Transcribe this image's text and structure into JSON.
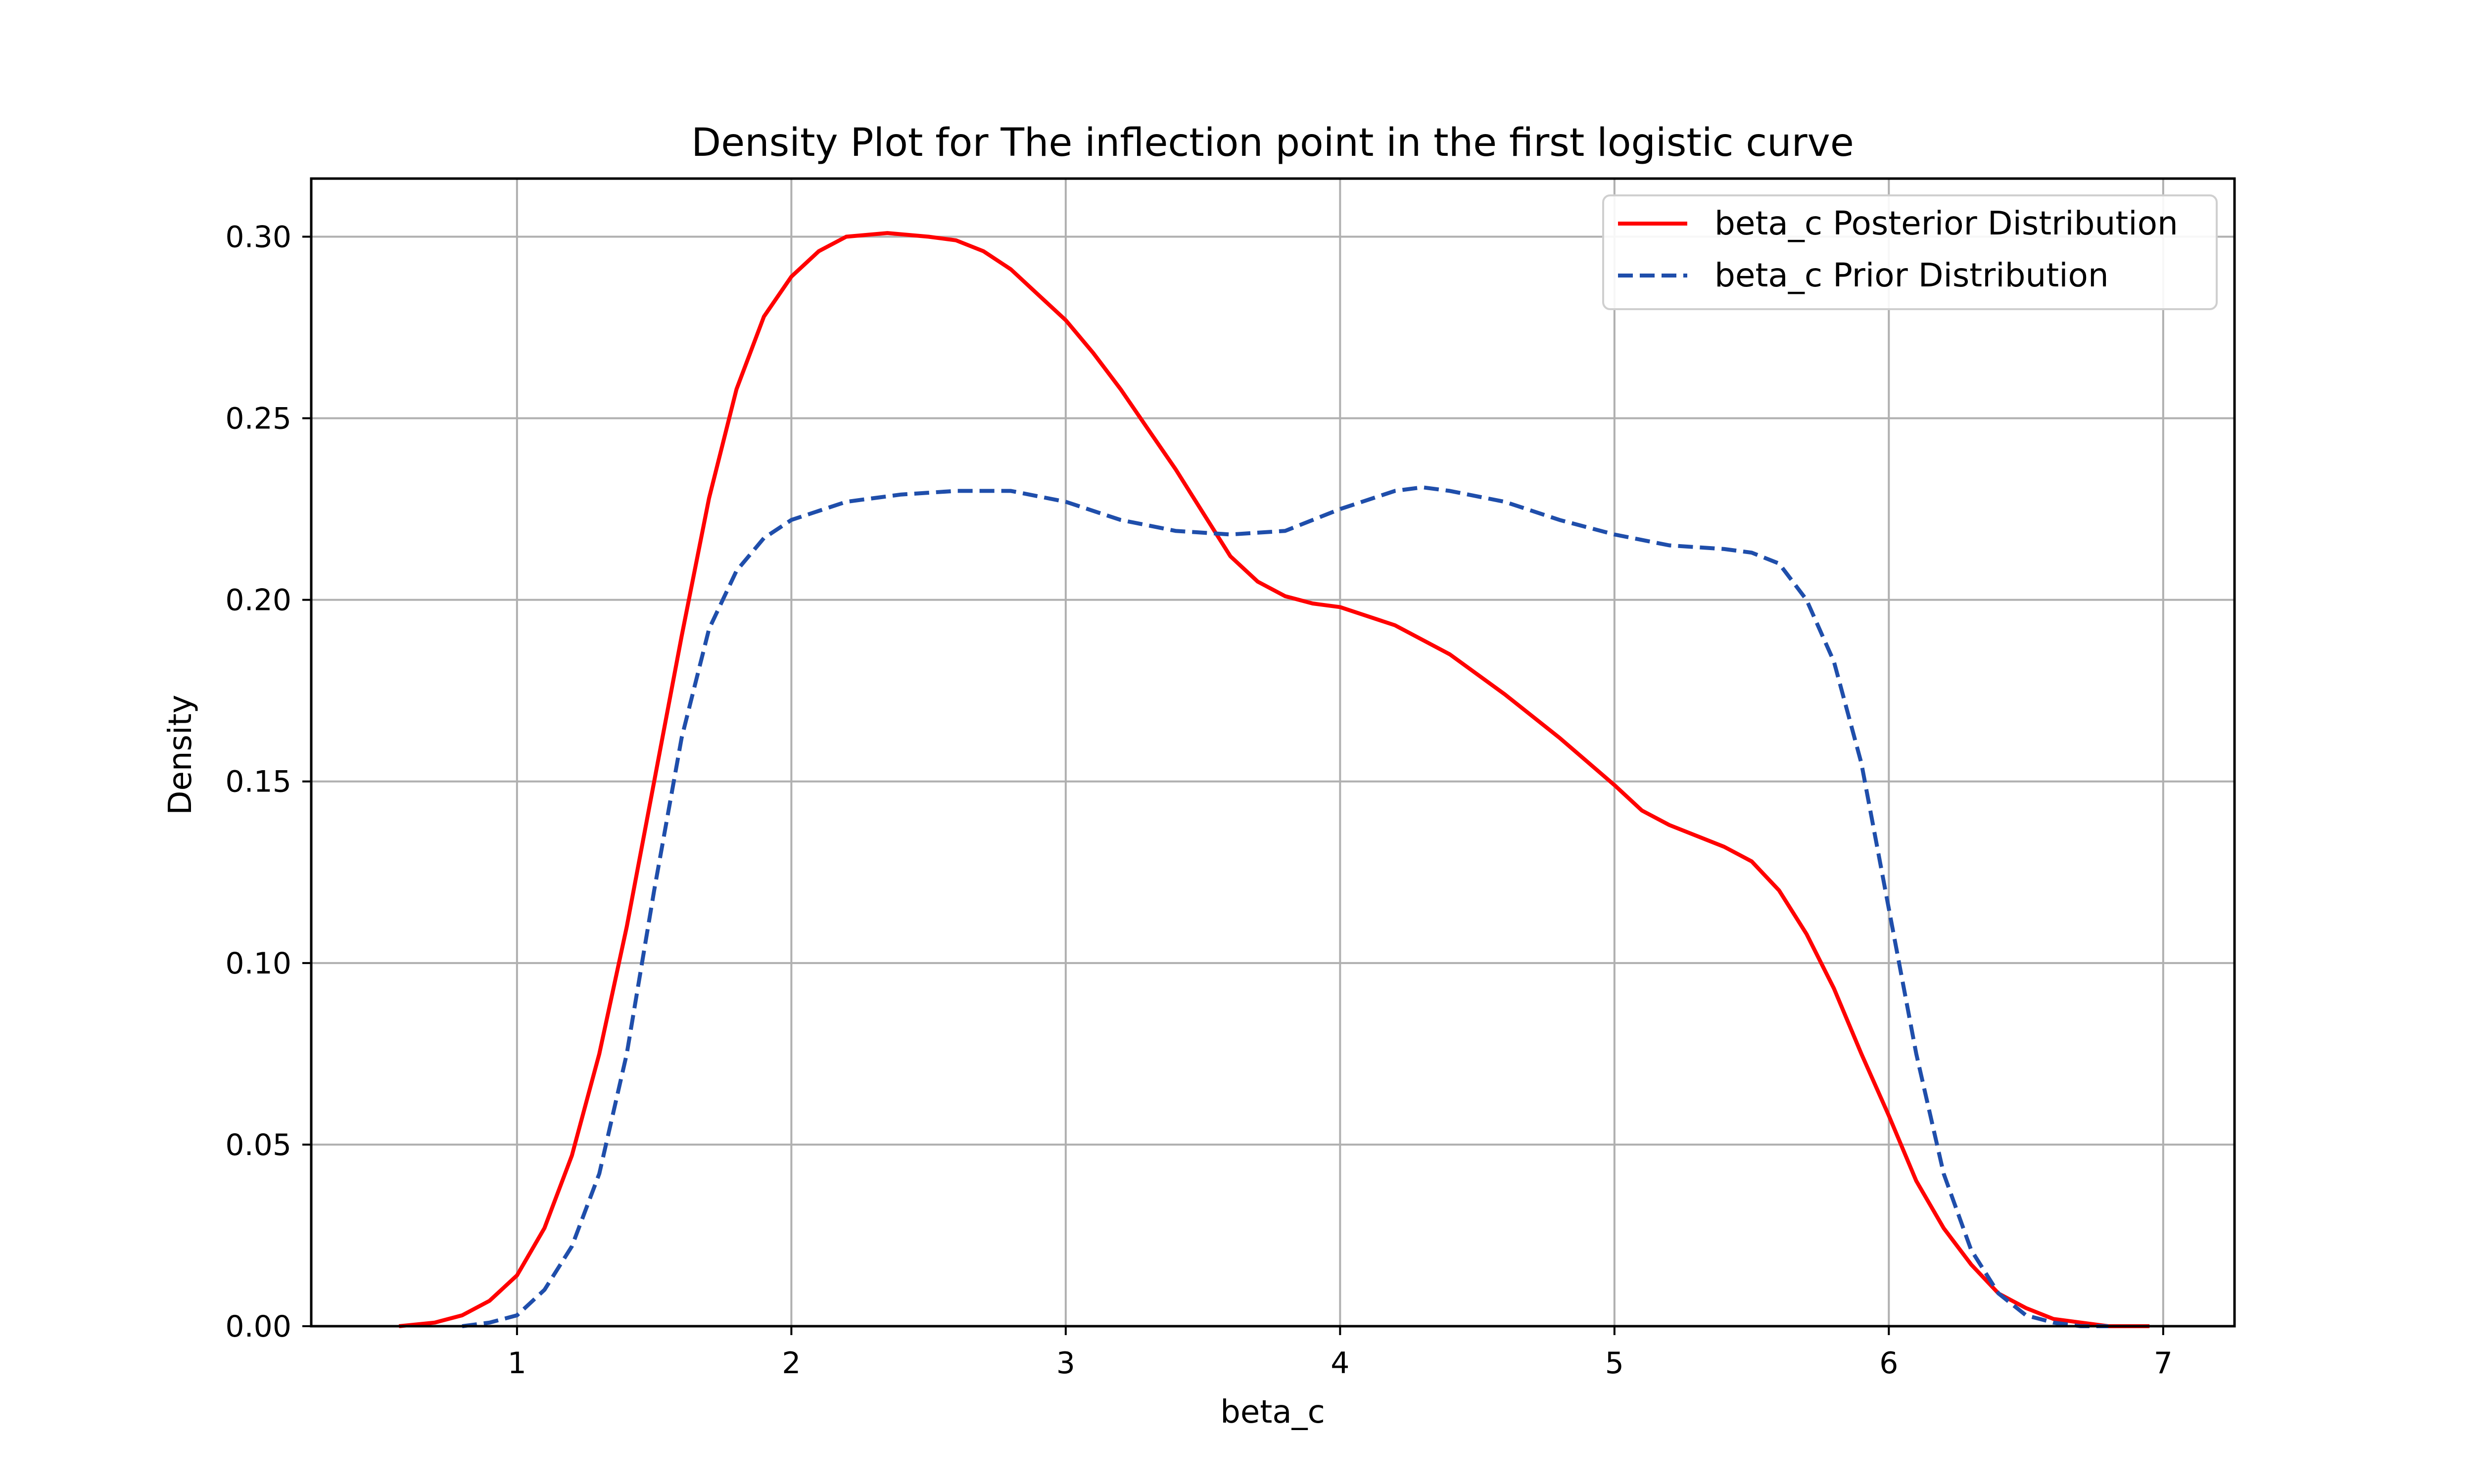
{
  "chart_data": {
    "type": "line",
    "title": "Density Plot for The inflection point in the first logistic curve",
    "xlabel": "beta_c",
    "ylabel": "Density",
    "xlim": [
      0.25,
      7.26
    ],
    "ylim": [
      0.0,
      0.316
    ],
    "x_ticks": [
      "1",
      "2",
      "3",
      "4",
      "5",
      "6",
      "7"
    ],
    "y_ticks": [
      "0.00",
      "0.05",
      "0.10",
      "0.15",
      "0.20",
      "0.25",
      "0.30"
    ],
    "grid": true,
    "legend_position": "top-right",
    "series": [
      {
        "name": "beta_c Posterior Distribution",
        "color": "#ff0000",
        "line_style": "solid",
        "points": [
          [
            0.57,
            0.0
          ],
          [
            0.7,
            0.001
          ],
          [
            0.8,
            0.003
          ],
          [
            0.9,
            0.007
          ],
          [
            1.0,
            0.014
          ],
          [
            1.1,
            0.027
          ],
          [
            1.2,
            0.047
          ],
          [
            1.3,
            0.075
          ],
          [
            1.4,
            0.11
          ],
          [
            1.5,
            0.15
          ],
          [
            1.6,
            0.19
          ],
          [
            1.7,
            0.228
          ],
          [
            1.8,
            0.258
          ],
          [
            1.9,
            0.278
          ],
          [
            2.0,
            0.289
          ],
          [
            2.1,
            0.296
          ],
          [
            2.2,
            0.3
          ],
          [
            2.35,
            0.301
          ],
          [
            2.5,
            0.3
          ],
          [
            2.6,
            0.299
          ],
          [
            2.7,
            0.296
          ],
          [
            2.8,
            0.291
          ],
          [
            2.9,
            0.284
          ],
          [
            3.0,
            0.277
          ],
          [
            3.1,
            0.268
          ],
          [
            3.2,
            0.258
          ],
          [
            3.3,
            0.247
          ],
          [
            3.4,
            0.236
          ],
          [
            3.5,
            0.224
          ],
          [
            3.6,
            0.212
          ],
          [
            3.7,
            0.205
          ],
          [
            3.8,
            0.201
          ],
          [
            3.9,
            0.199
          ],
          [
            4.0,
            0.198
          ],
          [
            4.2,
            0.193
          ],
          [
            4.4,
            0.185
          ],
          [
            4.6,
            0.174
          ],
          [
            4.8,
            0.162
          ],
          [
            5.0,
            0.149
          ],
          [
            5.1,
            0.142
          ],
          [
            5.2,
            0.138
          ],
          [
            5.3,
            0.135
          ],
          [
            5.4,
            0.132
          ],
          [
            5.5,
            0.128
          ],
          [
            5.6,
            0.12
          ],
          [
            5.7,
            0.108
          ],
          [
            5.8,
            0.093
          ],
          [
            5.9,
            0.075
          ],
          [
            6.0,
            0.058
          ],
          [
            6.1,
            0.04
          ],
          [
            6.2,
            0.027
          ],
          [
            6.3,
            0.017
          ],
          [
            6.4,
            0.009
          ],
          [
            6.5,
            0.005
          ],
          [
            6.6,
            0.002
          ],
          [
            6.7,
            0.001
          ],
          [
            6.8,
            0.0
          ],
          [
            6.95,
            0.0
          ]
        ]
      },
      {
        "name": "beta_c Prior Distribution",
        "color": "#1f4eab",
        "line_style": "dashed",
        "points": [
          [
            0.8,
            0.0
          ],
          [
            0.9,
            0.001
          ],
          [
            1.0,
            0.003
          ],
          [
            1.1,
            0.01
          ],
          [
            1.2,
            0.022
          ],
          [
            1.3,
            0.042
          ],
          [
            1.4,
            0.075
          ],
          [
            1.5,
            0.12
          ],
          [
            1.6,
            0.162
          ],
          [
            1.7,
            0.192
          ],
          [
            1.8,
            0.208
          ],
          [
            1.9,
            0.217
          ],
          [
            2.0,
            0.222
          ],
          [
            2.2,
            0.227
          ],
          [
            2.4,
            0.229
          ],
          [
            2.6,
            0.23
          ],
          [
            2.8,
            0.23
          ],
          [
            3.0,
            0.227
          ],
          [
            3.2,
            0.222
          ],
          [
            3.4,
            0.219
          ],
          [
            3.6,
            0.218
          ],
          [
            3.8,
            0.219
          ],
          [
            4.0,
            0.225
          ],
          [
            4.2,
            0.23
          ],
          [
            4.3,
            0.231
          ],
          [
            4.4,
            0.23
          ],
          [
            4.6,
            0.227
          ],
          [
            4.8,
            0.222
          ],
          [
            5.0,
            0.218
          ],
          [
            5.2,
            0.215
          ],
          [
            5.4,
            0.214
          ],
          [
            5.5,
            0.213
          ],
          [
            5.6,
            0.21
          ],
          [
            5.7,
            0.2
          ],
          [
            5.8,
            0.183
          ],
          [
            5.9,
            0.155
          ],
          [
            6.0,
            0.115
          ],
          [
            6.1,
            0.075
          ],
          [
            6.2,
            0.042
          ],
          [
            6.3,
            0.021
          ],
          [
            6.4,
            0.009
          ],
          [
            6.5,
            0.003
          ],
          [
            6.6,
            0.001
          ],
          [
            6.7,
            0.0
          ],
          [
            6.8,
            0.0
          ]
        ]
      }
    ]
  }
}
